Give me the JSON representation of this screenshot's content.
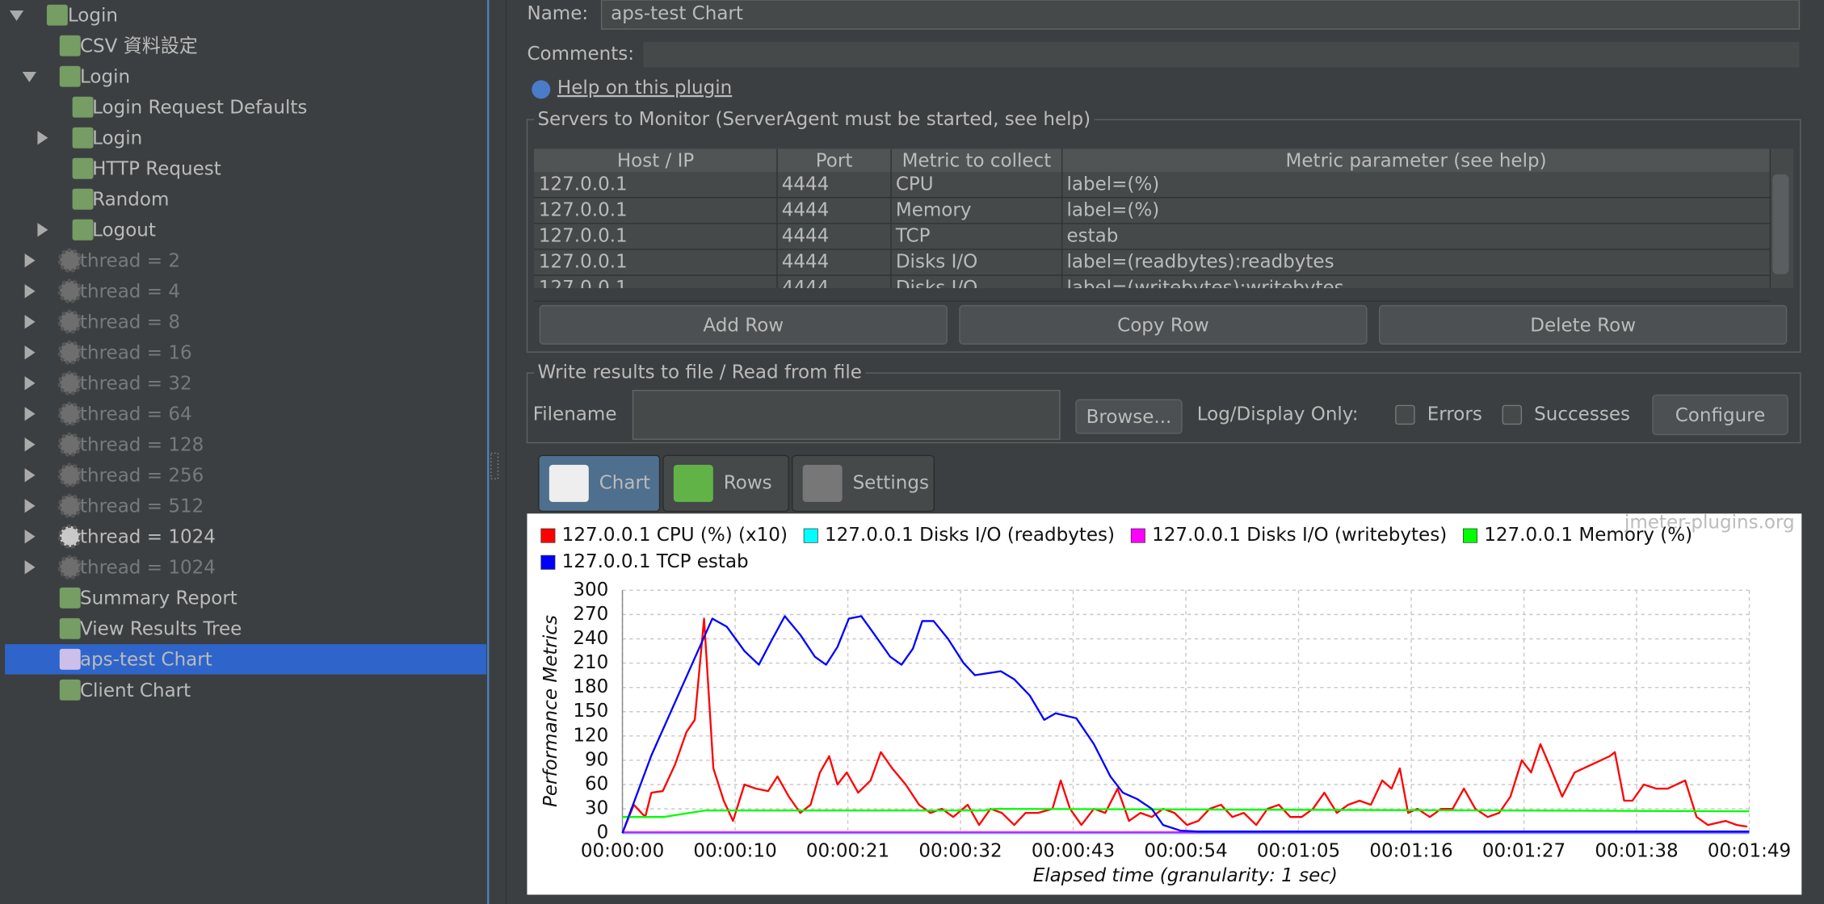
{
  "tree": {
    "label": "Login",
    "children": [
      {
        "label": "CSV 資料設定"
      },
      {
        "label": "Login",
        "children": [
          {
            "label": "Login Request Defaults"
          },
          {
            "label": "Login",
            "expanded": false
          },
          {
            "label": "HTTP Request"
          },
          {
            "label": "Random"
          },
          {
            "label": "Logout",
            "expanded": false
          }
        ]
      },
      {
        "label": "thread = 2",
        "expanded": false,
        "enabled": false
      },
      {
        "label": "thread = 4",
        "expanded": false,
        "enabled": false
      },
      {
        "label": "thread = 8",
        "expanded": false,
        "enabled": false
      },
      {
        "label": "thread = 16",
        "expanded": false,
        "enabled": false
      },
      {
        "label": "thread = 32",
        "expanded": false,
        "enabled": false
      },
      {
        "label": "thread = 64",
        "expanded": false,
        "enabled": false
      },
      {
        "label": "thread = 128",
        "expanded": false,
        "enabled": false
      },
      {
        "label": "thread = 256",
        "expanded": false,
        "enabled": false
      },
      {
        "label": "thread = 512",
        "expanded": false,
        "enabled": false
      },
      {
        "label": "thread = 1024",
        "expanded": false
      },
      {
        "label": "thread = 1024",
        "expanded": false,
        "enabled": false
      },
      {
        "label": "Summary Report"
      },
      {
        "label": "View Results Tree"
      },
      {
        "label": "aps-test Chart",
        "selected": true
      },
      {
        "label": "Client Chart"
      }
    ]
  },
  "form": {
    "name_label": "Name:",
    "name": "aps-test Chart",
    "comments_label": "Comments:",
    "help_link": "Help on this plugin"
  },
  "servers": {
    "title": "Servers to Monitor (ServerAgent must be started, see help)",
    "columns": [
      "Host / IP",
      "Port",
      "Metric to collect",
      "Metric parameter (see help)"
    ],
    "rows": [
      [
        "127.0.0.1",
        "4444",
        "CPU",
        "label=(%)"
      ],
      [
        "127.0.0.1",
        "4444",
        "Memory",
        "label=(%)"
      ],
      [
        "127.0.0.1",
        "4444",
        "TCP",
        "estab"
      ],
      [
        "127.0.0.1",
        "4444",
        "Disks I/O",
        "label=(readbytes):readbytes"
      ],
      [
        "127.0.0.1",
        "4444",
        "Disks I/O",
        "label=(writebytes):writebytes"
      ]
    ],
    "buttons": [
      "Add Row",
      "Copy Row",
      "Delete Row"
    ]
  },
  "file": {
    "title": "Write results to file / Read from file",
    "filename_label": "Filename",
    "browse": "Browse...",
    "log_label": "Log/Display Only:",
    "errors": "Errors",
    "successes": "Successes",
    "configure": "Configure"
  },
  "tabs": [
    {
      "label": "Chart",
      "selected": true
    },
    {
      "label": "Rows"
    },
    {
      "label": "Settings"
    }
  ],
  "chart_data": {
    "type": "line",
    "watermark": "jmeter-plugins.org",
    "xlabel": "Elapsed time (granularity: 1 sec)",
    "ylabel": "Performance Metrics",
    "grid": true,
    "xlim": [
      0,
      109
    ],
    "ylim": [
      0,
      300
    ],
    "yticks": [
      0,
      30,
      60,
      90,
      120,
      150,
      180,
      210,
      240,
      270,
      300
    ],
    "xticks": [
      {
        "value": 0,
        "label": "00:00:00"
      },
      {
        "value": 10.9,
        "label": "00:00:10"
      },
      {
        "value": 21.8,
        "label": "00:00:21"
      },
      {
        "value": 32.7,
        "label": "00:00:32"
      },
      {
        "value": 43.6,
        "label": "00:00:43"
      },
      {
        "value": 54.5,
        "label": "00:00:54"
      },
      {
        "value": 65.4,
        "label": "00:01:05"
      },
      {
        "value": 76.3,
        "label": "00:01:16"
      },
      {
        "value": 87.2,
        "label": "00:01:27"
      },
      {
        "value": 98.1,
        "label": "00:01:38"
      },
      {
        "value": 109,
        "label": "00:01:49"
      }
    ],
    "series": [
      {
        "name": "127.0.0.1 CPU (%) (x10)",
        "color": "#ff0000",
        "x": [
          0,
          1.1,
          2.2,
          2.8,
          3.9,
          5.1,
          6.2,
          7.0,
          7.9,
          8.8,
          9.8,
          10.7,
          11.8,
          12.9,
          14.1,
          15.0,
          16.1,
          17.2,
          18.2,
          19.1,
          20.0,
          20.8,
          21.7,
          22.8,
          24.0,
          25.0,
          26.1,
          27.4,
          28.7,
          29.8,
          30.9,
          32.0,
          33.4,
          34.5,
          35.6,
          36.7,
          37.9,
          39.0,
          40.2,
          41.6,
          42.4,
          43.3,
          44.4,
          45.6,
          46.7,
          47.9,
          49.0,
          50.1,
          51.2,
          52.3,
          53.4,
          54.6,
          55.7,
          56.8,
          57.9,
          59.0,
          60.1,
          61.3,
          62.4,
          63.5,
          64.6,
          65.7,
          66.8,
          67.9,
          69.1,
          70.2,
          71.3,
          72.4,
          73.5,
          74.4,
          75.2,
          76.0,
          76.9,
          78.1,
          79.2,
          80.3,
          81.4,
          82.5,
          83.7,
          84.8,
          85.9,
          87.0,
          87.9,
          88.8,
          89.8,
          90.9,
          92.1,
          93.8,
          95.5,
          96.0,
          96.9,
          97.7,
          98.8,
          100.0,
          101.1,
          102.8,
          103.9,
          105.0,
          106.7,
          107.8,
          108.8
        ],
        "values": [
          0,
          35,
          20,
          50,
          52,
          85,
          125,
          140,
          265,
          80,
          40,
          15,
          60,
          55,
          52,
          70,
          45,
          25,
          35,
          75,
          95,
          60,
          75,
          50,
          65,
          100,
          80,
          60,
          35,
          25,
          30,
          20,
          35,
          10,
          30,
          25,
          10,
          25,
          25,
          30,
          65,
          30,
          10,
          30,
          25,
          55,
          15,
          25,
          20,
          30,
          25,
          10,
          15,
          30,
          35,
          20,
          25,
          10,
          30,
          35,
          20,
          20,
          30,
          50,
          25,
          35,
          40,
          35,
          65,
          55,
          80,
          25,
          30,
          20,
          30,
          30,
          55,
          30,
          20,
          25,
          45,
          90,
          75,
          110,
          80,
          45,
          75,
          85,
          95,
          100,
          40,
          40,
          60,
          55,
          55,
          65,
          20,
          10,
          15,
          10,
          8
        ]
      },
      {
        "name": "127.0.0.1 Disks I/O (readbytes)",
        "color": "#00ffff",
        "x": [
          0,
          109
        ],
        "values": [
          0,
          0
        ]
      },
      {
        "name": "127.0.0.1 Disks I/O (writebytes)",
        "color": "#ff00ff",
        "x": [
          0,
          109
        ],
        "values": [
          1,
          1
        ]
      },
      {
        "name": "127.0.0.1 Memory (%)",
        "color": "#00ff00",
        "x": [
          0,
          4,
          8,
          35,
          36,
          109
        ],
        "values": [
          20,
          20,
          28,
          28,
          30,
          27
        ]
      },
      {
        "name": "127.0.0.1 TCP estab",
        "color": "#0000ff",
        "x": [
          0,
          2.8,
          8.7,
          10.1,
          11.8,
          13.2,
          14.3,
          15.7,
          17.2,
          18.6,
          19.7,
          20.8,
          21.9,
          23.1,
          24.4,
          25.9,
          27.0,
          28.1,
          29.0,
          30.1,
          31.5,
          33.0,
          34.1,
          36.6,
          37.9,
          39.4,
          40.8,
          41.9,
          43.9,
          45.6,
          47.2,
          48.4,
          49.8,
          51.2,
          52.3,
          54.0,
          55.7,
          109
        ],
        "values": [
          0,
          96,
          265,
          255,
          225,
          208,
          235,
          268,
          245,
          218,
          208,
          230,
          265,
          268,
          245,
          218,
          208,
          228,
          262,
          262,
          240,
          210,
          195,
          200,
          190,
          170,
          140,
          148,
          142,
          110,
          70,
          50,
          42,
          30,
          10,
          3,
          2,
          2
        ]
      }
    ]
  }
}
